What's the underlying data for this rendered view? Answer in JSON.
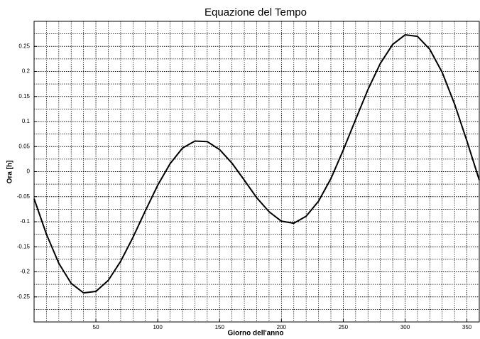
{
  "chart_data": {
    "type": "line",
    "title": "Equazione del Tempo",
    "xlabel": "Giorno dell'anno",
    "ylabel": "Ora [h]",
    "x": [
      0,
      10,
      20,
      30,
      40,
      50,
      60,
      70,
      80,
      90,
      100,
      110,
      120,
      130,
      140,
      150,
      160,
      170,
      180,
      190,
      200,
      210,
      220,
      230,
      240,
      250,
      260,
      270,
      280,
      290,
      300,
      310,
      320,
      330,
      340,
      350,
      360
    ],
    "series": [
      {
        "name": "Equazione del Tempo",
        "color": "#000000",
        "values": [
          -0.054,
          -0.125,
          -0.183,
          -0.223,
          -0.242,
          -0.239,
          -0.217,
          -0.179,
          -0.131,
          -0.078,
          -0.027,
          0.016,
          0.047,
          0.061,
          0.06,
          0.044,
          0.017,
          -0.017,
          -0.052,
          -0.08,
          -0.099,
          -0.103,
          -0.089,
          -0.059,
          -0.014,
          0.043,
          0.104,
          0.164,
          0.216,
          0.254,
          0.273,
          0.27,
          0.244,
          0.198,
          0.135,
          0.061,
          -0.017
        ]
      }
    ],
    "xlim": [
      0,
      360
    ],
    "xticks": [
      50,
      100,
      150,
      200,
      250,
      300,
      350
    ],
    "ylim": [
      -0.3,
      0.3
    ],
    "yticks": [
      -0.25,
      -0.2,
      -0.15,
      -0.1,
      -0.05,
      0,
      0.05,
      0.1,
      0.15,
      0.2,
      0.25
    ],
    "grid": true
  }
}
